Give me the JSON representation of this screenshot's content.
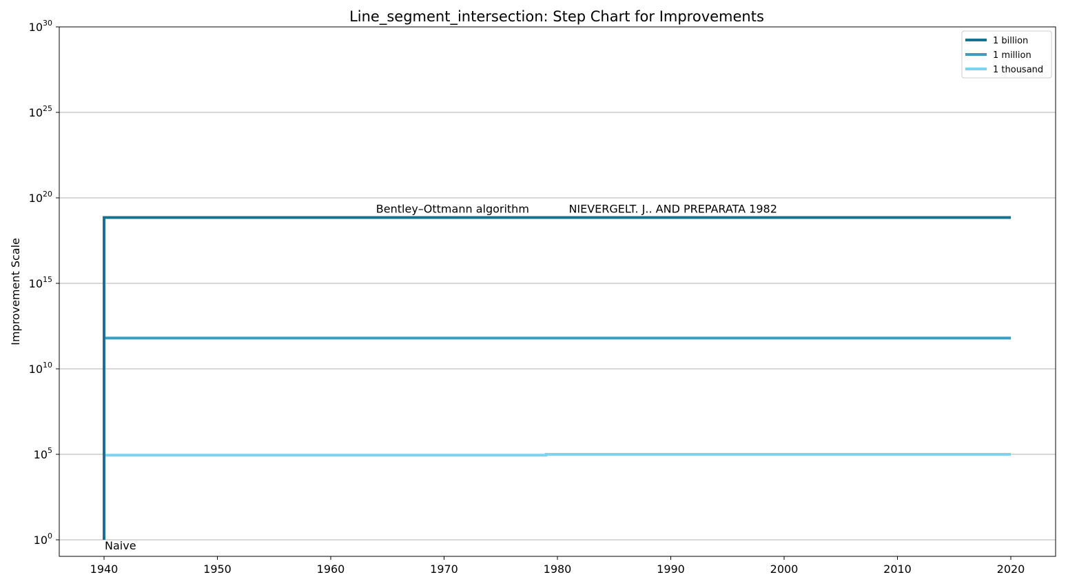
{
  "chart_data": {
    "type": "line",
    "step": true,
    "title": "Line_segment_intersection: Step Chart for Improvements",
    "xlabel": "",
    "ylabel": "Improvement Scale",
    "xlim": [
      1936,
      2024
    ],
    "ylim_log10": [
      0,
      30
    ],
    "yscale": "log",
    "grid": "y-major",
    "x_ticks": [
      "1940",
      "1950",
      "1960",
      "1970",
      "1980",
      "1990",
      "2000",
      "2010",
      "2020"
    ],
    "y_ticks": [
      {
        "base": "10",
        "exp": "0"
      },
      {
        "base": "10",
        "exp": "5"
      },
      {
        "base": "10",
        "exp": "10"
      },
      {
        "base": "10",
        "exp": "15"
      },
      {
        "base": "10",
        "exp": "20"
      },
      {
        "base": "10",
        "exp": "25"
      },
      {
        "base": "10",
        "exp": "30"
      }
    ],
    "legend_position": "top-right",
    "series": [
      {
        "name": "1 billion",
        "color": "#16728f",
        "points": [
          [
            1940,
            0
          ],
          [
            1940,
            18.85
          ],
          [
            2020,
            18.85
          ]
        ]
      },
      {
        "name": "1 million",
        "color": "#3a9ebf",
        "points": [
          [
            1940,
            0
          ],
          [
            1940,
            11.8
          ],
          [
            2020,
            11.8
          ]
        ]
      },
      {
        "name": "1 thousand",
        "color": "#7dd3f2",
        "points": [
          [
            1940,
            0
          ],
          [
            1940,
            4.95
          ],
          [
            1979,
            4.95
          ],
          [
            1979,
            5.0
          ],
          [
            2020,
            5.0
          ]
        ]
      }
    ],
    "annotations": [
      {
        "text": "Naive",
        "x": 1940,
        "y": 0
      },
      {
        "text": "Bentley–Ottmann algorithm",
        "x": 1964,
        "y": 18.85
      },
      {
        "text": "NIEVERGELT. J.. AND PREPARATA 1982",
        "x": 1981,
        "y": 18.85
      }
    ]
  }
}
